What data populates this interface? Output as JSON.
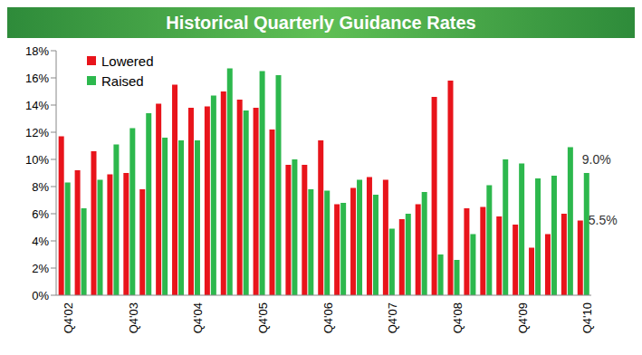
{
  "chart_data": {
    "type": "bar",
    "title": "Historical Quarterly Guidance Rates",
    "categories": [
      "Q4'02",
      null,
      null,
      null,
      "Q4'03",
      null,
      null,
      null,
      "Q4'04",
      null,
      null,
      null,
      "Q4'05",
      null,
      null,
      null,
      "Q4'06",
      null,
      null,
      null,
      "Q4'07",
      null,
      null,
      null,
      "Q4'08",
      null,
      null,
      null,
      "Q4'09",
      null,
      null,
      null,
      "Q4'10"
    ],
    "series": [
      {
        "name": "Lowered",
        "color": "#e8141b",
        "values": [
          11.7,
          9.2,
          10.6,
          8.9,
          9.0,
          7.8,
          14.1,
          15.5,
          13.8,
          13.9,
          15.0,
          14.4,
          13.8,
          12.2,
          9.6,
          9.6,
          11.4,
          6.7,
          7.9,
          8.7,
          8.5,
          5.6,
          6.7,
          14.6,
          15.8,
          6.4,
          6.5,
          5.8,
          5.2,
          3.5,
          4.5,
          6.0,
          5.5
        ]
      },
      {
        "name": "Raised",
        "color": "#2db84d",
        "values": [
          8.3,
          6.4,
          8.5,
          11.1,
          12.3,
          13.4,
          11.6,
          11.4,
          11.4,
          14.7,
          16.7,
          13.6,
          16.5,
          16.2,
          10.0,
          7.8,
          7.7,
          6.8,
          8.5,
          7.4,
          4.9,
          6.0,
          7.6,
          3.0,
          2.6,
          4.5,
          8.1,
          10.0,
          9.7,
          8.6,
          8.8,
          10.9,
          9.0
        ]
      }
    ],
    "annotations": [
      {
        "text": "9.0%",
        "series": "Raised",
        "index": 32
      },
      {
        "text": "5.5%",
        "series": "Lowered",
        "index": 32
      }
    ],
    "ylim": [
      0,
      18
    ],
    "yticks": [
      {
        "value": 0,
        "label": "0%"
      },
      {
        "value": 2,
        "label": "2%"
      },
      {
        "value": 4,
        "label": "4%"
      },
      {
        "value": 6,
        "label": "6%"
      },
      {
        "value": 8,
        "label": "8%"
      },
      {
        "value": 10,
        "label": "10%"
      },
      {
        "value": 12,
        "label": "12%"
      },
      {
        "value": 14,
        "label": "14%"
      },
      {
        "value": 16,
        "label": "16%"
      },
      {
        "value": 18,
        "label": "18%"
      }
    ],
    "grid": false,
    "legend": "top-left"
  }
}
